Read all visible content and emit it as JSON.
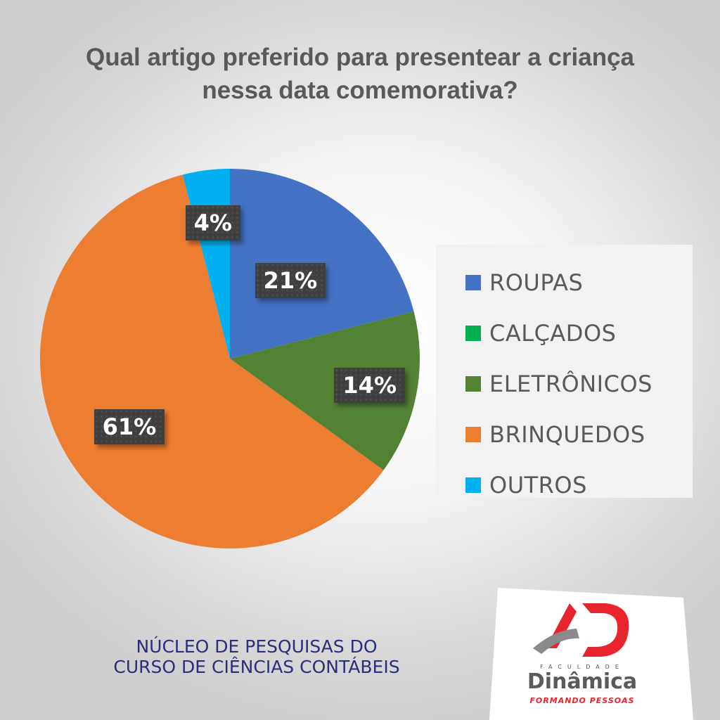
{
  "chart_data": {
    "type": "pie",
    "title": "Qual artigo preferido para presentear a criança nessa data comemorativa?",
    "title_lines": [
      "Qual artigo preferido para presentear a criança",
      "nessa data comemorativa?"
    ],
    "categories": [
      "ROUPAS",
      "CALÇADOS",
      "ELETRÔNICOS",
      "BRINQUEDOS",
      "OUTROS"
    ],
    "values": [
      21,
      0,
      14,
      61,
      4
    ],
    "value_labels": [
      "21%",
      "",
      "14%",
      "61%",
      "4%"
    ],
    "colors": [
      "#4472c4",
      "#00b050",
      "#548235",
      "#ed7d31",
      "#00b0f0"
    ],
    "legend_position": "right"
  },
  "footer": {
    "lines": [
      "NÚCLEO DE PESQUISAS DO",
      "CURSO DE CIÊNCIAS CONTÁBEIS"
    ]
  },
  "logo": {
    "faculdade": "FACULDADE",
    "name": "Dinâmica",
    "tagline": "FORMANDO PESSOAS",
    "colors": {
      "red": "#e8242e",
      "gray": "#8a8a8a"
    }
  }
}
